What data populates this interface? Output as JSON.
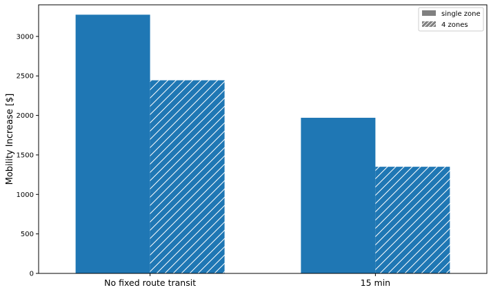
{
  "chart_data": {
    "type": "bar",
    "title": "",
    "xlabel": "",
    "ylabel": "Mobility Increase [$]",
    "ylim": [
      0,
      3400
    ],
    "yticks": [
      0,
      500,
      1000,
      1500,
      2000,
      2500,
      3000
    ],
    "categories": [
      "No fixed route transit",
      "15 min"
    ],
    "series": [
      {
        "name": "single zone",
        "values": [
          3275,
          1970
        ],
        "pattern": "solid"
      },
      {
        "name": "4 zones",
        "values": [
          2445,
          1350
        ],
        "pattern": "hatch"
      }
    ],
    "bar_color": "#1f77b4",
    "legend_color": "#808080",
    "legend_position": "top-right",
    "grid": false
  }
}
